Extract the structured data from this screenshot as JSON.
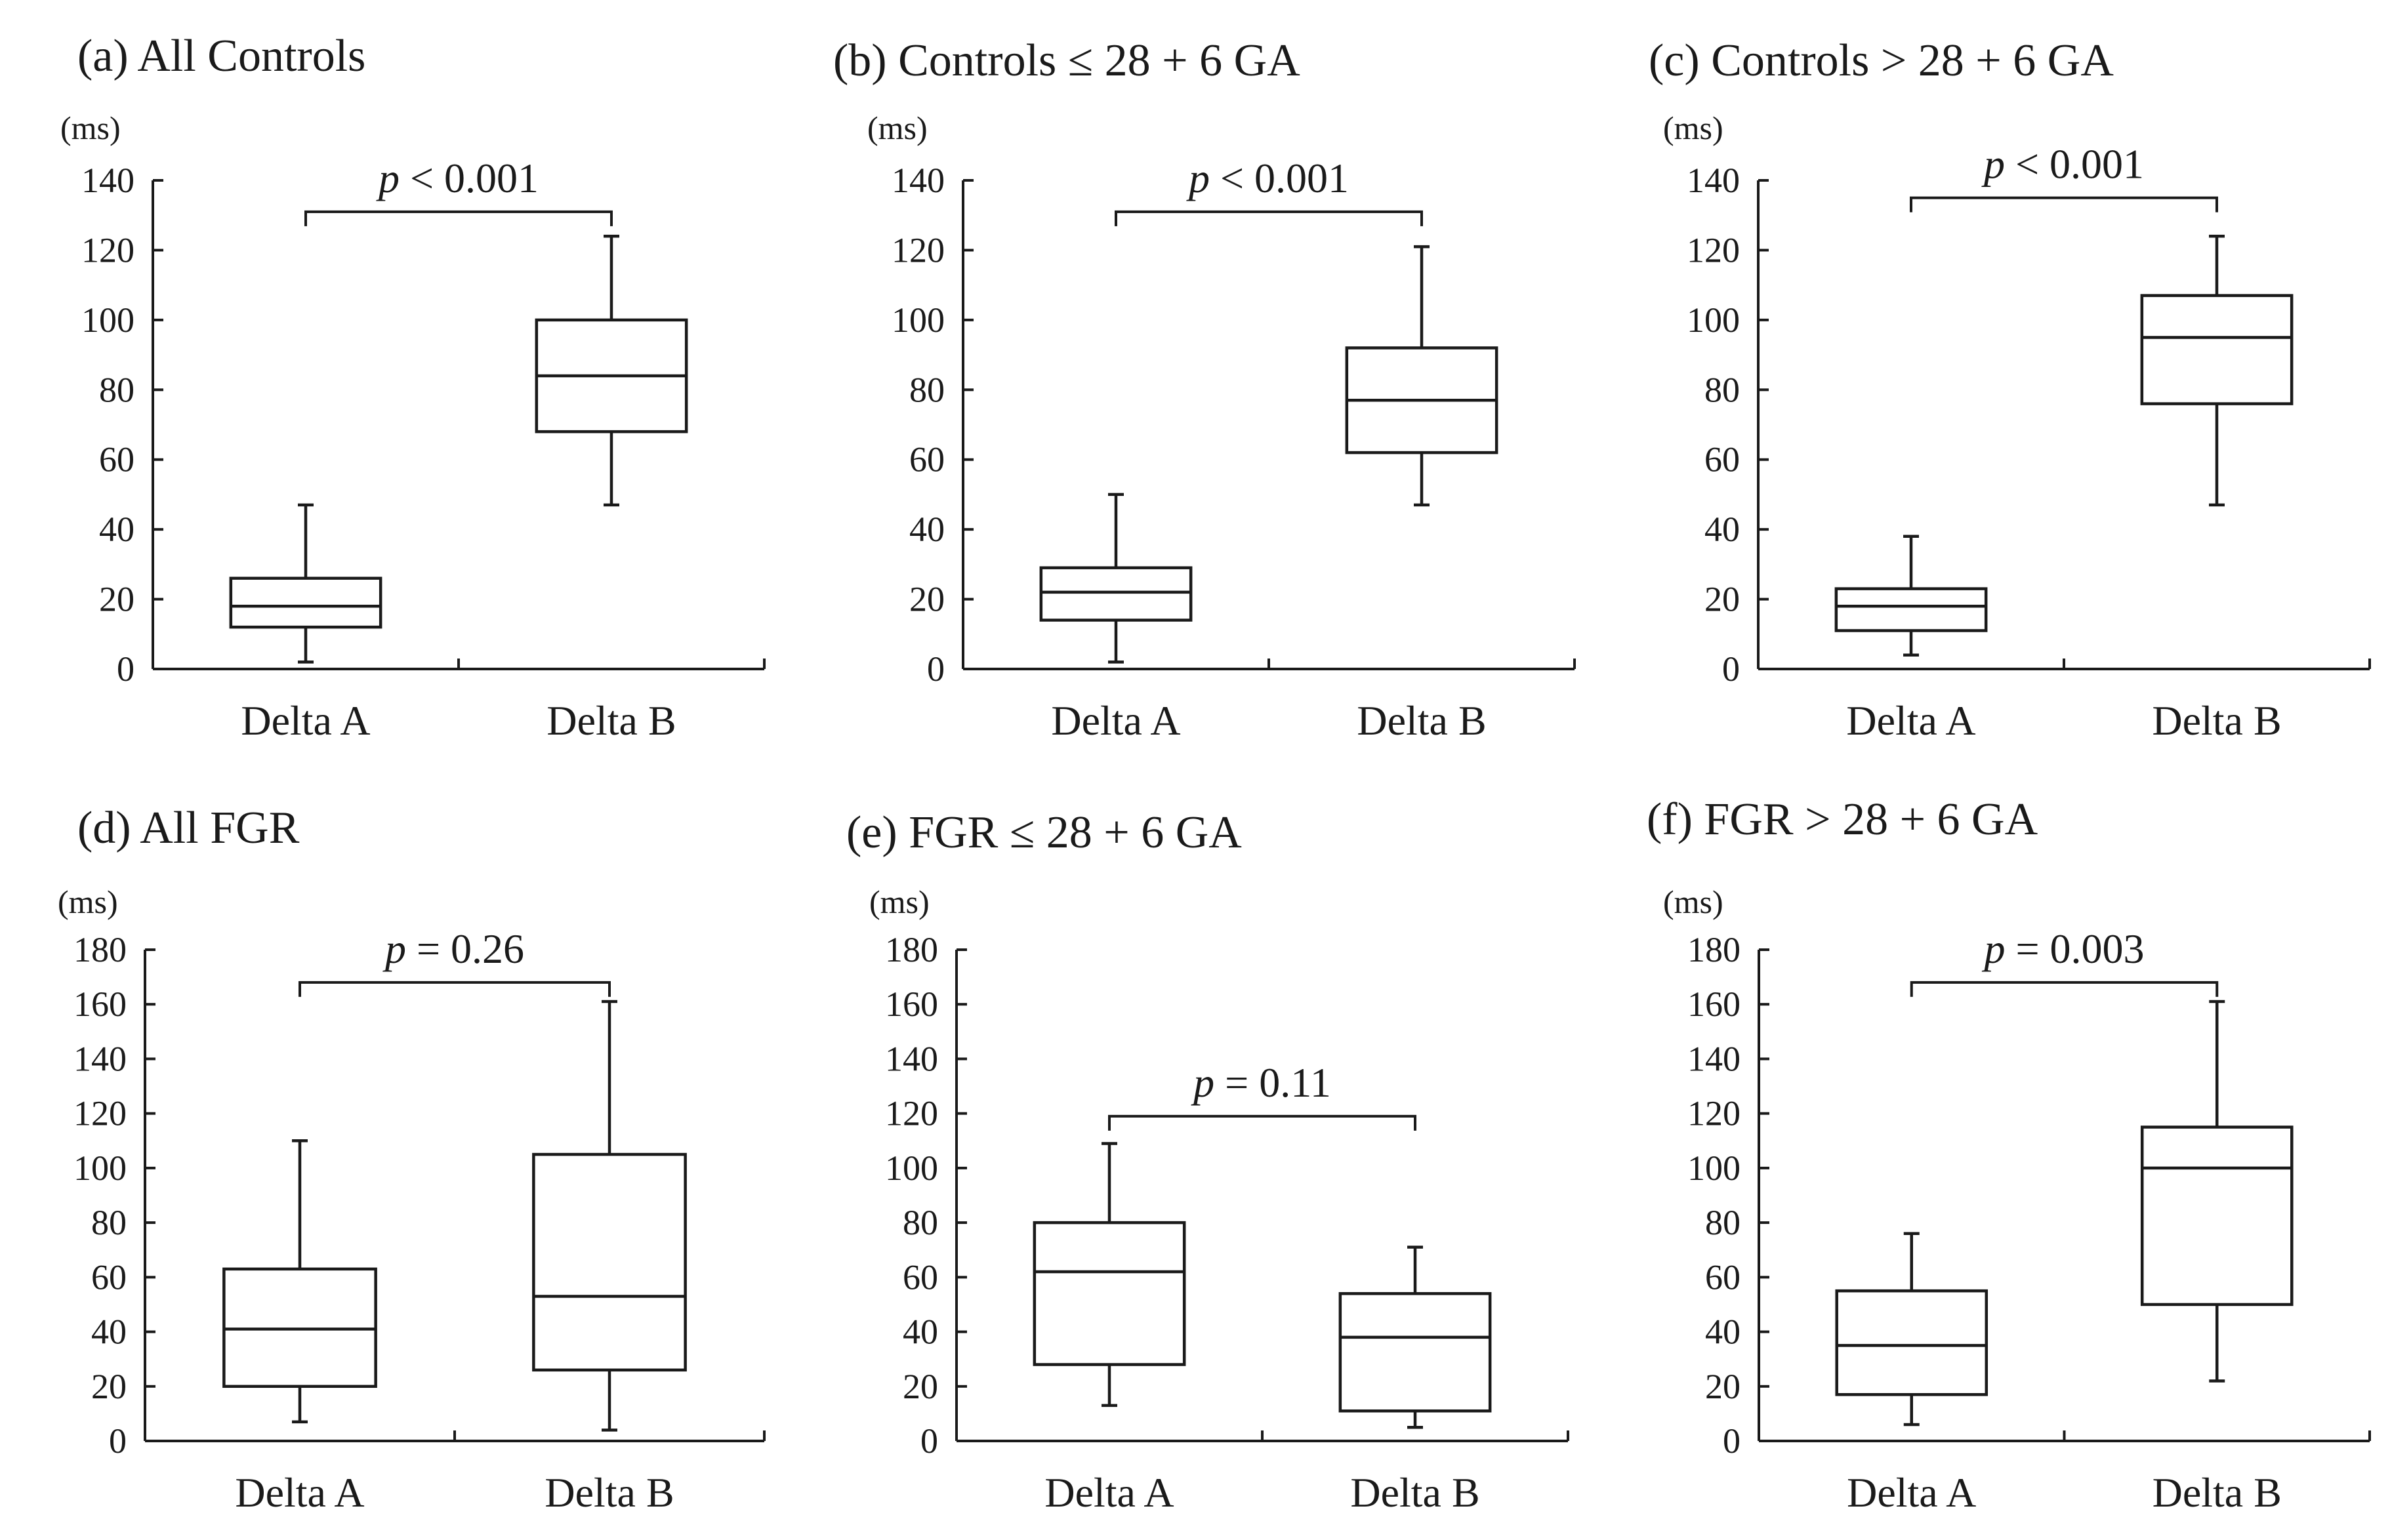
{
  "chart_data": [
    {
      "id": "a",
      "type": "box",
      "title": "(a) All Controls",
      "ylabel": "(ms)",
      "ylim": [
        0,
        140
      ],
      "yticks": [
        "0",
        "20",
        "40",
        "60",
        "80",
        "100",
        "120",
        "140"
      ],
      "categories": [
        "Delta A",
        "Delta B"
      ],
      "boxes": [
        {
          "min": 2,
          "q1": 12,
          "median": 18,
          "q3": 26,
          "max": 47
        },
        {
          "min": 47,
          "q1": 68,
          "median": 84,
          "q3": 100,
          "max": 124
        }
      ],
      "p_label": "p",
      "p_value": "< 0.001"
    },
    {
      "id": "b",
      "type": "box",
      "title": "(b) Controls ≤ 28 + 6 GA",
      "ylabel": "(ms)",
      "ylim": [
        0,
        140
      ],
      "yticks": [
        "0",
        "20",
        "40",
        "60",
        "80",
        "100",
        "120",
        "140"
      ],
      "categories": [
        "Delta A",
        "Delta B"
      ],
      "boxes": [
        {
          "min": 2,
          "q1": 14,
          "median": 22,
          "q3": 29,
          "max": 50
        },
        {
          "min": 47,
          "q1": 62,
          "median": 77,
          "q3": 92,
          "max": 121
        }
      ],
      "p_label": "p",
      "p_value": "< 0.001"
    },
    {
      "id": "c",
      "type": "box",
      "title": "(c)  Controls > 28 + 6 GA",
      "ylabel": "(ms)",
      "ylim": [
        0,
        140
      ],
      "yticks": [
        "0",
        "20",
        "40",
        "60",
        "80",
        "100",
        "120",
        "140"
      ],
      "categories": [
        "Delta A",
        "Delta B"
      ],
      "boxes": [
        {
          "min": 4,
          "q1": 11,
          "median": 18,
          "q3": 23,
          "max": 38
        },
        {
          "min": 47,
          "q1": 76,
          "median": 95,
          "q3": 107,
          "max": 124
        }
      ],
      "p_label": "p",
      "p_value": "< 0.001"
    },
    {
      "id": "d",
      "type": "box",
      "title": "(d) All FGR",
      "ylabel": "(ms)",
      "ylim": [
        0,
        180
      ],
      "yticks": [
        "0",
        "20",
        "40",
        "60",
        "80",
        "100",
        "120",
        "140",
        "160",
        "180"
      ],
      "categories": [
        "Delta A",
        "Delta B"
      ],
      "boxes": [
        {
          "min": 7,
          "q1": 20,
          "median": 41,
          "q3": 63,
          "max": 110
        },
        {
          "min": 4,
          "q1": 26,
          "median": 53,
          "q3": 105,
          "max": 161
        }
      ],
      "p_label": "p",
      "p_value": "= 0.26"
    },
    {
      "id": "e",
      "type": "box",
      "title": "(e) FGR ≤ 28 + 6 GA",
      "ylabel": "(ms)",
      "ylim": [
        0,
        180
      ],
      "yticks": [
        "0",
        "20",
        "40",
        "60",
        "80",
        "100",
        "120",
        "140",
        "160",
        "180"
      ],
      "categories": [
        "Delta A",
        "Delta B"
      ],
      "boxes": [
        {
          "min": 13,
          "q1": 28,
          "median": 62,
          "q3": 80,
          "max": 109
        },
        {
          "min": 5,
          "q1": 11,
          "median": 38,
          "q3": 54,
          "max": 71
        }
      ],
      "p_label": "p",
      "p_value": "= 0.11"
    },
    {
      "id": "f",
      "type": "box",
      "title": "(f) FGR > 28 + 6 GA",
      "ylabel": "(ms)",
      "ylim": [
        0,
        180
      ],
      "yticks": [
        "0",
        "20",
        "40",
        "60",
        "80",
        "100",
        "120",
        "140",
        "160",
        "180"
      ],
      "categories": [
        "Delta A",
        "Delta B"
      ],
      "boxes": [
        {
          "min": 6,
          "q1": 17,
          "median": 35,
          "q3": 55,
          "max": 76
        },
        {
          "min": 22,
          "q1": 50,
          "median": 100,
          "q3": 115,
          "max": 161
        }
      ],
      "p_label": "p",
      "p_value": "= 0.003"
    }
  ]
}
